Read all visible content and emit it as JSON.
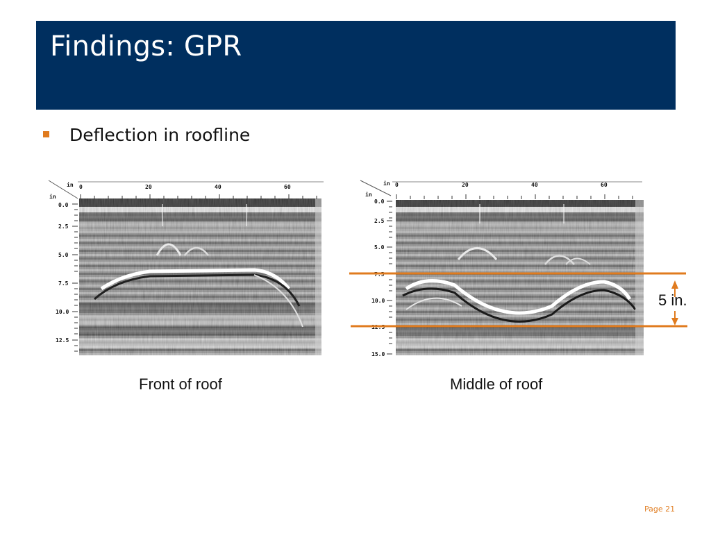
{
  "slide": {
    "title": "Findings: GPR",
    "bullet": "Deflection in roofline",
    "page_label": "Page 21"
  },
  "colors": {
    "title_bar": "#002f5f",
    "accent": "#e07b1e"
  },
  "figures": [
    {
      "caption": "Front of roof",
      "horizontal_unit": "in",
      "depth_unit": "in",
      "horizontal_ticks": [
        "0",
        "20",
        "40",
        "60"
      ],
      "depth_ticks": [
        "0.0",
        "2.5",
        "5.0",
        "7.5",
        "10.0",
        "12.5"
      ]
    },
    {
      "caption": "Middle of roof",
      "horizontal_unit": "in",
      "depth_unit": "in",
      "horizontal_ticks": [
        "0",
        "20",
        "40",
        "60"
      ],
      "depth_ticks": [
        "0.0",
        "2.5",
        "5.0",
        "7.5",
        "10.0",
        "12.5",
        "15.0"
      ]
    }
  ],
  "measurement": {
    "label": "5 in.",
    "from_depth": "7.5",
    "to_depth": "12.5"
  }
}
